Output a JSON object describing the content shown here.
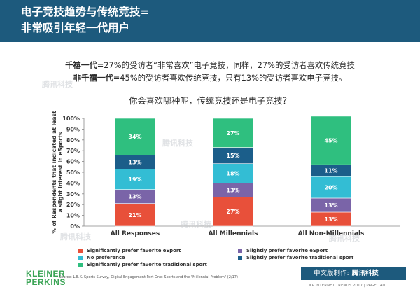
{
  "header": {
    "title_line1": "电子竞技趋势与传统竞技=",
    "title_line2": "非常吸引年轻一代用户"
  },
  "intro": {
    "line1_bold": "千禧一代",
    "line1_rest": "=27%的受访者“非常喜欢”电子竞技，同样，27%的受访者喜欢传统竞技",
    "line2_bold": "非千禧一代",
    "line2_rest": "=45%的受访者喜欢传统竞技，只有13%的受访者喜欢电子竞技。"
  },
  "question": "你会喜欢哪种呢，传统竞技还是电子竞技？",
  "chart_data": {
    "type": "bar",
    "stacked": true,
    "ylabel": "% of Respondents that indicated at least a slight interest in eSports",
    "ylim": [
      0,
      100
    ],
    "yticks": [
      "0%",
      "10%",
      "20%",
      "30%",
      "40%",
      "50%",
      "60%",
      "70%",
      "80%",
      "90%",
      "100%"
    ],
    "categories": [
      "All Responses",
      "All Millennials",
      "All Non-Millennials"
    ],
    "series": [
      {
        "name": "Significantly prefer favorite eSport",
        "color": "#e8503a",
        "values": [
          21,
          27,
          13
        ]
      },
      {
        "name": "Slightly prefer favorite eSport",
        "color": "#7a64a8",
        "values": [
          13,
          13,
          13
        ]
      },
      {
        "name": "No preference",
        "color": "#33bdd4",
        "values": [
          19,
          18,
          20
        ]
      },
      {
        "name": "Slightly prefer favorite traditional sport",
        "color": "#1b5e8a",
        "values": [
          13,
          15,
          11
        ]
      },
      {
        "name": "Significantly prefer favorite traditional sport",
        "color": "#2fbf7f",
        "values": [
          34,
          27,
          45
        ]
      }
    ],
    "data_labels": [
      [
        "21%",
        "13%",
        "19%",
        "13%",
        "34%"
      ],
      [
        "27%",
        "13%",
        "18%",
        "15%",
        "27%"
      ],
      [
        "13%",
        "13%",
        "20%",
        "11%",
        "45%"
      ]
    ],
    "grid": false,
    "legend_position": "bottom"
  },
  "footer": {
    "logo_line1": "KLEINER",
    "logo_line2": "PERKINS",
    "source": "Source: L.E.K. Sports Survey, Digital Engagement Part One: Sports and the \"Millennial Problem\" (2/17)",
    "badge_text": "中文版制作:",
    "badge_brand": "腾讯科技",
    "page_info": "KP INTERNET TRENDS 2017  |  PAGE 140"
  },
  "watermark": "腾讯科技"
}
